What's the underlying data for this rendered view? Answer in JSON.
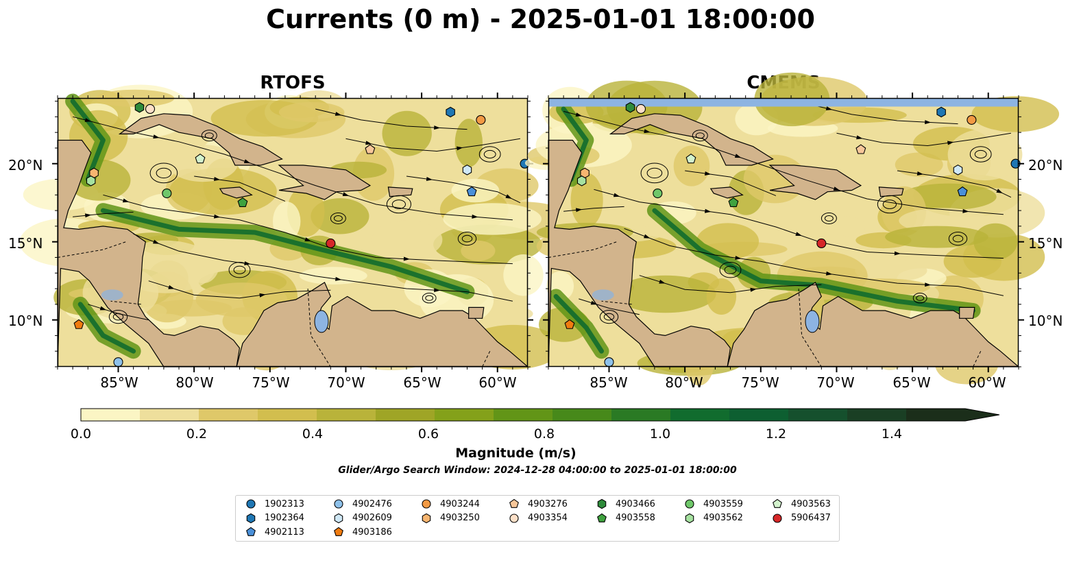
{
  "title": "Currents (0 m) - 2025-01-01 18:00:00",
  "panels": [
    {
      "title": "RTOFS"
    },
    {
      "title": "CMEMS"
    }
  ],
  "lat_ticks": [
    "20°N",
    "15°N",
    "10°N"
  ],
  "lon_ticks": [
    "85°W",
    "80°W",
    "75°W",
    "70°W",
    "65°W",
    "60°W"
  ],
  "map_extent": {
    "lon": [
      -89,
      -58
    ],
    "lat": [
      7,
      24.2
    ]
  },
  "colorbar": {
    "label": "Magnitude (m/s)",
    "ticks": [
      "0.0",
      "0.2",
      "0.4",
      "0.6",
      "0.8",
      "1.0",
      "1.2",
      "1.4"
    ],
    "range": [
      0,
      1.5
    ],
    "extend": "max",
    "colors": [
      "#fbf5c4",
      "#eedf9c",
      "#dfc869",
      "#d2be4e",
      "#b9b33a",
      "#9fa526",
      "#84a11a",
      "#629517",
      "#47891a",
      "#2a7a24",
      "#116c2e",
      "#0d5f31",
      "#15502d",
      "#1a3f24",
      "#1b2e1a"
    ]
  },
  "search_window": "Glider/Argo Search Window: 2024-12-28 04:00:00 to 2025-01-01 18:00:00",
  "legend": [
    {
      "id": "1902313",
      "marker": "circle",
      "color": "#1f77b4"
    },
    {
      "id": "1902364",
      "marker": "hexagon",
      "color": "#1f77b4"
    },
    {
      "id": "4902113",
      "marker": "pentagon",
      "color": "#4a90d9"
    },
    {
      "id": "4902476",
      "marker": "circle",
      "color": "#8ec1ea"
    },
    {
      "id": "4902609",
      "marker": "hexagon",
      "color": "#cfe8f7"
    },
    {
      "id": "4903186",
      "marker": "pentagon",
      "color": "#f07c10"
    },
    {
      "id": "4903244",
      "marker": "circle",
      "color": "#f39a44"
    },
    {
      "id": "4903250",
      "marker": "hexagon",
      "color": "#f7b570"
    },
    {
      "id": "4903276",
      "marker": "pentagon",
      "color": "#f8c79a"
    },
    {
      "id": "4903354",
      "marker": "circle",
      "color": "#fde0c8"
    },
    {
      "id": "4903466",
      "marker": "hexagon",
      "color": "#2e8b3a"
    },
    {
      "id": "4903558",
      "marker": "pentagon",
      "color": "#3fa23f"
    },
    {
      "id": "4903559",
      "marker": "circle",
      "color": "#6fc76a"
    },
    {
      "id": "4903562",
      "marker": "hexagon",
      "color": "#a6e1a0"
    },
    {
      "id": "4903563",
      "marker": "pentagon",
      "color": "#d3f3cd"
    },
    {
      "id": "5906437",
      "marker": "circle",
      "color": "#d62728"
    }
  ],
  "float_positions": [
    {
      "id": "1902313",
      "lon": -58.2,
      "lat": 20.0
    },
    {
      "id": "4902476",
      "lon": -85.0,
      "lat": 7.3
    },
    {
      "id": "4902609",
      "lon": -62.0,
      "lat": 19.6
    },
    {
      "id": "4902113",
      "lon": -61.7,
      "lat": 18.2
    },
    {
      "id": "1902364",
      "lon": -63.1,
      "lat": 23.3
    },
    {
      "id": "4903244",
      "lon": -61.1,
      "lat": 22.8
    },
    {
      "id": "4903276",
      "lon": -68.4,
      "lat": 20.9
    },
    {
      "id": "4903354",
      "lon": -82.9,
      "lat": 23.5
    },
    {
      "id": "4903466",
      "lon": -83.6,
      "lat": 23.6
    },
    {
      "id": "4903563",
      "lon": -79.6,
      "lat": 20.3
    },
    {
      "id": "4903250",
      "lon": -86.6,
      "lat": 19.4
    },
    {
      "id": "4903562",
      "lon": -86.8,
      "lat": 18.9
    },
    {
      "id": "4903559",
      "lon": -81.8,
      "lat": 18.1
    },
    {
      "id": "4903558",
      "lon": -76.8,
      "lat": 17.5
    },
    {
      "id": "5906437",
      "lon": -71.0,
      "lat": 14.9
    },
    {
      "id": "4903186",
      "lon": -87.6,
      "lat": 9.7
    }
  ]
}
